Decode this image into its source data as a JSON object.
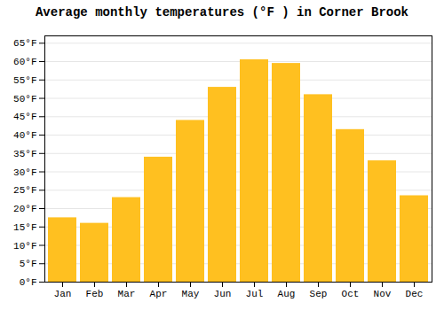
{
  "chart_data": {
    "type": "bar",
    "title": "Average monthly temperatures (°F ) in Corner Brook",
    "categories": [
      "Jan",
      "Feb",
      "Mar",
      "Apr",
      "May",
      "Jun",
      "Jul",
      "Aug",
      "Sep",
      "Oct",
      "Nov",
      "Dec"
    ],
    "values": [
      17.5,
      16.0,
      23.0,
      34.0,
      44.0,
      53.0,
      60.5,
      59.5,
      51.0,
      41.5,
      33.0,
      23.5
    ],
    "color": "#FFC020",
    "ylim": [
      0,
      67
    ],
    "yticks": [
      {
        "value": 0,
        "label": "0°F"
      },
      {
        "value": 5,
        "label": "5°F"
      },
      {
        "value": 10,
        "label": "10°F"
      },
      {
        "value": 15,
        "label": "15°F"
      },
      {
        "value": 20,
        "label": "20°F"
      },
      {
        "value": 25,
        "label": "25°F"
      },
      {
        "value": 30,
        "label": "30°F"
      },
      {
        "value": 35,
        "label": "35°F"
      },
      {
        "value": 40,
        "label": "40°F"
      },
      {
        "value": 45,
        "label": "45°F"
      },
      {
        "value": 50,
        "label": "50°F"
      },
      {
        "value": 55,
        "label": "55°F"
      },
      {
        "value": 60,
        "label": "60°F"
      },
      {
        "value": 65,
        "label": "65°F"
      }
    ],
    "grid": true
  }
}
